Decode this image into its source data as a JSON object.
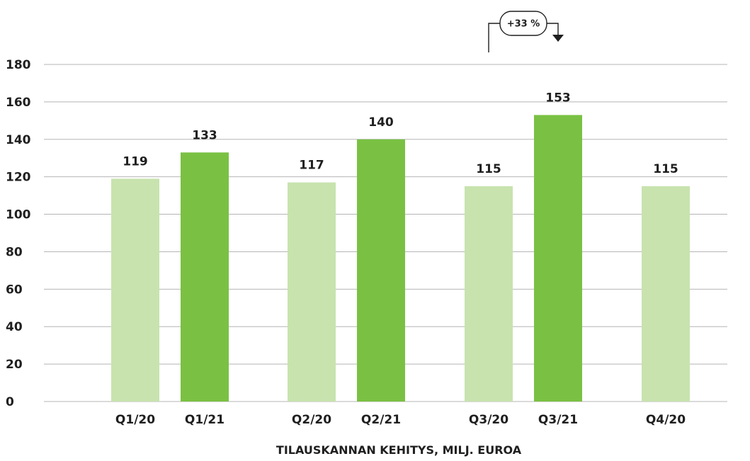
{
  "chart_data": {
    "type": "bar",
    "title": "",
    "xlabel": "TILAUSKANNAN KEHITYS, MILJ. EUROA",
    "ylabel": "",
    "ylim": [
      0,
      180
    ],
    "yticks": [
      "0",
      "20",
      "40",
      "60",
      "80",
      "100",
      "120",
      "140",
      "160",
      "180"
    ],
    "grid": true,
    "categories": [
      "Q1/20",
      "Q1/21",
      "Q2/20",
      "Q2/21",
      "Q3/20",
      "Q3/21",
      "Q4/20"
    ],
    "values": [
      119,
      133,
      117,
      140,
      115,
      153,
      115
    ],
    "value_labels": [
      "119",
      "133",
      "117",
      "140",
      "115",
      "153",
      "115"
    ],
    "colors": [
      "#c8e3ae",
      "#7ac143",
      "#c8e3ae",
      "#7ac143",
      "#c8e3ae",
      "#7ac143",
      "#c8e3ae"
    ],
    "annotation": {
      "text": "+33 %",
      "from_category": "Q3/20",
      "to_category": "Q3/21"
    }
  }
}
